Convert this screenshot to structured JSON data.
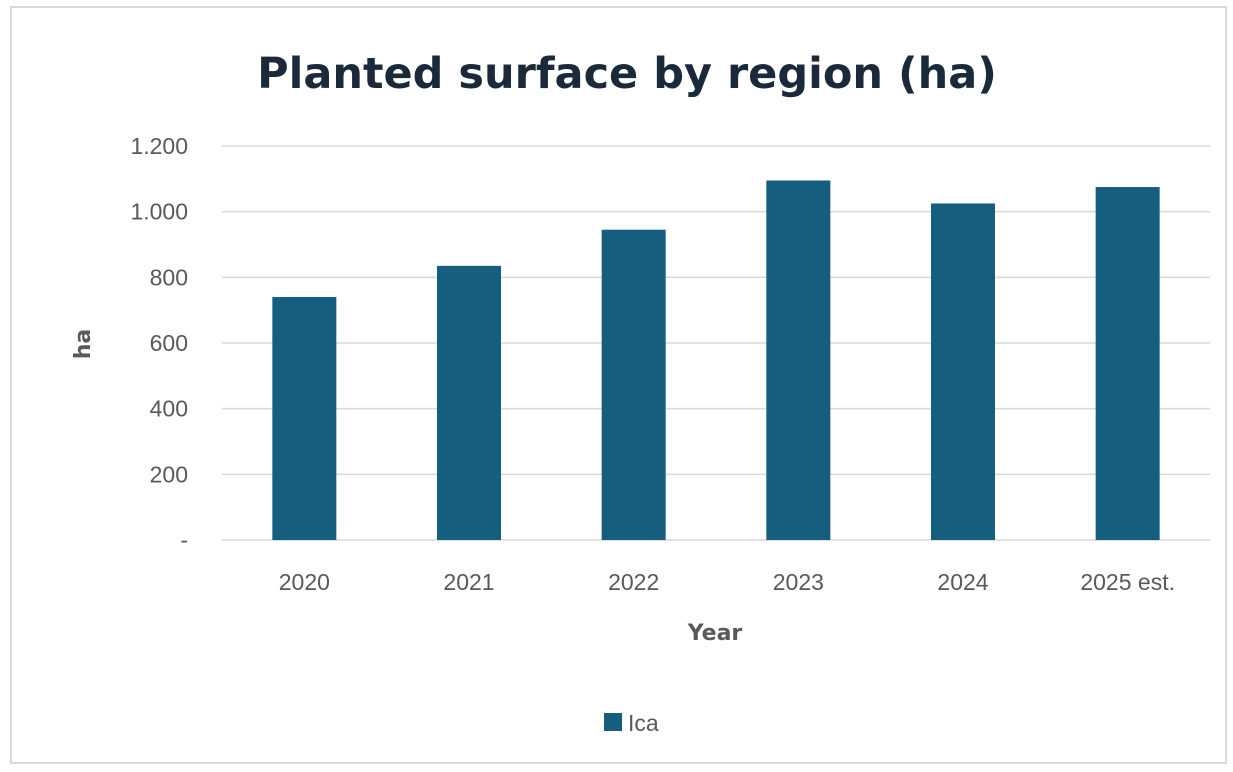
{
  "chart_data": {
    "type": "bar",
    "title": "Planted surface by region (ha)",
    "xlabel": "Year",
    "ylabel": "ha",
    "categories": [
      "2020",
      "2021",
      "2022",
      "2023",
      "2024",
      "2025 est."
    ],
    "series": [
      {
        "name": "Ica",
        "values": [
          740,
          835,
          945,
          1095,
          1025,
          1075
        ],
        "color": "#155e7e"
      }
    ],
    "ylim": [
      0,
      1200
    ],
    "yticks": [
      {
        "value": 0,
        "label": "-"
      },
      {
        "value": 200,
        "label": "200"
      },
      {
        "value": 400,
        "label": "400"
      },
      {
        "value": 600,
        "label": "600"
      },
      {
        "value": 800,
        "label": "800"
      },
      {
        "value": 1000,
        "label": "1.000"
      },
      {
        "value": 1200,
        "label": "1.200"
      }
    ],
    "grid": true,
    "legend_position": "bottom"
  }
}
